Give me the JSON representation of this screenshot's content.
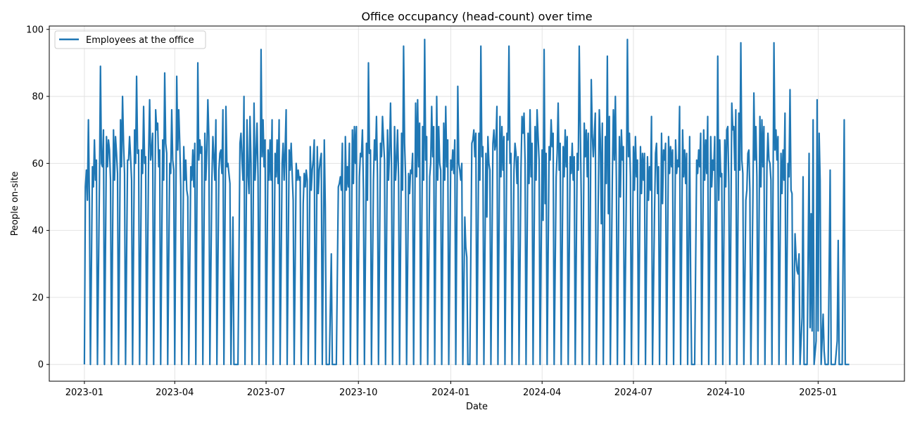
{
  "chart_data": {
    "type": "line",
    "title": "Office occupancy (head-count) over time",
    "xlabel": "Date",
    "ylabel": "People on-site",
    "x_range": [
      "2022-11-27",
      "2025-03-28"
    ],
    "ylim": [
      -5,
      101
    ],
    "x_ticks": [
      {
        "date": "2023-01-01",
        "label": "2023-01"
      },
      {
        "date": "2023-04-01",
        "label": "2023-04"
      },
      {
        "date": "2023-07-01",
        "label": "2023-07"
      },
      {
        "date": "2023-10-01",
        "label": "2023-10"
      },
      {
        "date": "2024-01-01",
        "label": "2024-01"
      },
      {
        "date": "2024-04-01",
        "label": "2024-04"
      },
      {
        "date": "2024-07-01",
        "label": "2024-07"
      },
      {
        "date": "2024-10-01",
        "label": "2024-10"
      },
      {
        "date": "2025-01-01",
        "label": "2025-01"
      }
    ],
    "y_ticks": [
      0,
      20,
      40,
      60,
      80,
      100
    ],
    "grid": true,
    "legend_position": "upper-left",
    "series": [
      {
        "name": "Employees at the office",
        "color": "#1f77b4",
        "start_date": "2023-01-02",
        "end_date": "2025-02-28",
        "weekday_values": [
          [
            53,
            58,
            49,
            73,
            49
          ],
          [
            59,
            53,
            67,
            55,
            61
          ],
          [
            54,
            89,
            60,
            59,
            70
          ],
          [
            68,
            59,
            67,
            64,
            55
          ],
          [
            70,
            55,
            68,
            63,
            57
          ],
          [
            73,
            59,
            80,
            66,
            57
          ],
          [
            61,
            61,
            68,
            62,
            55
          ],
          [
            70,
            60,
            86,
            63,
            64
          ],
          [
            64,
            57,
            77,
            60,
            62
          ],
          [
            63,
            79,
            61,
            64,
            69
          ],
          [
            76,
            70,
            72,
            59,
            64
          ],
          [
            67,
            55,
            87,
            66,
            63
          ],
          [
            60,
            57,
            76,
            61,
            58
          ],
          [
            86,
            64,
            76,
            66,
            53
          ],
          [
            65,
            55,
            61,
            52,
            50
          ],
          [
            59,
            55,
            64,
            53,
            66
          ],
          [
            90,
            61,
            67,
            63,
            65
          ],
          [
            69,
            55,
            64,
            79,
            68
          ],
          [
            55,
            68,
            62,
            55,
            73
          ],
          [
            58,
            63,
            64,
            57,
            76
          ],
          [
            77,
            59,
            60,
            57,
            54
          ],
          [
            44,
            0,
            0,
            0,
            0
          ],
          [
            66,
            69,
            61,
            55,
            80
          ],
          [
            73,
            57,
            51,
            74,
            60
          ],
          [
            78,
            55,
            63,
            72,
            56
          ],
          [
            94,
            62,
            73,
            59,
            67
          ],
          [
            64,
            55,
            67,
            55,
            73
          ],
          [
            63,
            56,
            67,
            54,
            73
          ],
          [
            60,
            66,
            55,
            64,
            76
          ],
          [
            64,
            58,
            66,
            57,
            49
          ],
          [
            60,
            55,
            58,
            55,
            56
          ],
          [
            48,
            57,
            53,
            58,
            55
          ],
          [
            65,
            52,
            58,
            61,
            67
          ],
          [
            65,
            51,
            58,
            61,
            63
          ],
          [
            67,
            47,
            0,
            0,
            0
          ],
          [
            33,
            0,
            0,
            0,
            0
          ],
          [
            53,
            54,
            56,
            52,
            66
          ],
          [
            68,
            52,
            59,
            53,
            66
          ],
          [
            70,
            54,
            71,
            60,
            71
          ],
          [
            56,
            63,
            62,
            70,
            52
          ],
          [
            66,
            49,
            90,
            63,
            64
          ],
          [
            55,
            67,
            61,
            74,
            56
          ],
          [
            66,
            62,
            74,
            67,
            61
          ],
          [
            70,
            55,
            63,
            78,
            59
          ],
          [
            71,
            55,
            61,
            70,
            56
          ],
          [
            69,
            52,
            95,
            66,
            56
          ],
          [
            57,
            51,
            58,
            57,
            63
          ],
          [
            78,
            56,
            79,
            59,
            72
          ],
          [
            71,
            55,
            97,
            61,
            68
          ],
          [
            56,
            60,
            77,
            62,
            71
          ],
          [
            80,
            55,
            71,
            60,
            58
          ],
          [
            72,
            55,
            77,
            59,
            67
          ],
          [
            61,
            58,
            64,
            57,
            67
          ],
          [
            83,
            60,
            58,
            55,
            60
          ],
          [
            44,
            35,
            32,
            0,
            0
          ],
          [
            66,
            67,
            70,
            62,
            69
          ],
          [
            69,
            55,
            95,
            62,
            65
          ],
          [
            63,
            44,
            68,
            60,
            58
          ],
          [
            66,
            70,
            64,
            66,
            77
          ],
          [
            74,
            56,
            71,
            58,
            68
          ],
          [
            69,
            67,
            95,
            60,
            63
          ],
          [
            58,
            66,
            63,
            54,
            62
          ],
          [
            59,
            74,
            69,
            75,
            61
          ],
          [
            69,
            54,
            76,
            56,
            66
          ],
          [
            71,
            55,
            76,
            68,
            61
          ],
          [
            64,
            43,
            94,
            48,
            63
          ],
          [
            65,
            61,
            73,
            65,
            69
          ],
          [
            56,
            63,
            78,
            58,
            66
          ],
          [
            65,
            56,
            70,
            59,
            68
          ],
          [
            62,
            57,
            66,
            55,
            62
          ],
          [
            63,
            58,
            95,
            72,
            50
          ],
          [
            72,
            62,
            70,
            56,
            69
          ],
          [
            85,
            69,
            62,
            68,
            75
          ],
          [
            50,
            76,
            67,
            42,
            72
          ],
          [
            68,
            54,
            92,
            45,
            74
          ],
          [
            56,
            76,
            61,
            80,
            55
          ],
          [
            68,
            50,
            70,
            61,
            65
          ],
          [
            53,
            97,
            62,
            69,
            56
          ],
          [
            65,
            52,
            68,
            56,
            61
          ],
          [
            65,
            51,
            63,
            55,
            63
          ],
          [
            62,
            49,
            59,
            52,
            74
          ],
          [
            45,
            63,
            66,
            51,
            59
          ],
          [
            69,
            48,
            64,
            61,
            66
          ],
          [
            68,
            57,
            65,
            59,
            64
          ],
          [
            67,
            57,
            61,
            59,
            77
          ],
          [
            70,
            56,
            64,
            54,
            63
          ],
          [
            68,
            25,
            0,
            0,
            0
          ],
          [
            61,
            57,
            64,
            59,
            69
          ],
          [
            70,
            55,
            67,
            57,
            74
          ],
          [
            68,
            53,
            61,
            58,
            68
          ],
          [
            92,
            49,
            67,
            56,
            57
          ],
          [
            67,
            53,
            70,
            71,
            54
          ],
          [
            78,
            70,
            71,
            58,
            76
          ],
          [
            75,
            58,
            96,
            61,
            57
          ],
          [
            49,
            52,
            63,
            64,
            52
          ],
          [
            49,
            81,
            61,
            71,
            56
          ],
          [
            74,
            53,
            73,
            59,
            71
          ],
          [
            59,
            69,
            61,
            60,
            55
          ],
          [
            96,
            64,
            70,
            61,
            68
          ],
          [
            63,
            51,
            64,
            55,
            75
          ],
          [
            60,
            56,
            82,
            52,
            51
          ],
          [
            39,
            32,
            28,
            27,
            33
          ],
          [
            14,
            56,
            0,
            0,
            0
          ],
          [
            63,
            11,
            45,
            10,
            73
          ],
          [
            7,
            79,
            10,
            69,
            55
          ],
          [
            15,
            4,
            0,
            0,
            0
          ],
          [
            58,
            0,
            0,
            0,
            0
          ],
          [
            7,
            37,
            0,
            0,
            0
          ],
          [
            73,
            0,
            0,
            0,
            0
          ]
        ]
      }
    ]
  }
}
